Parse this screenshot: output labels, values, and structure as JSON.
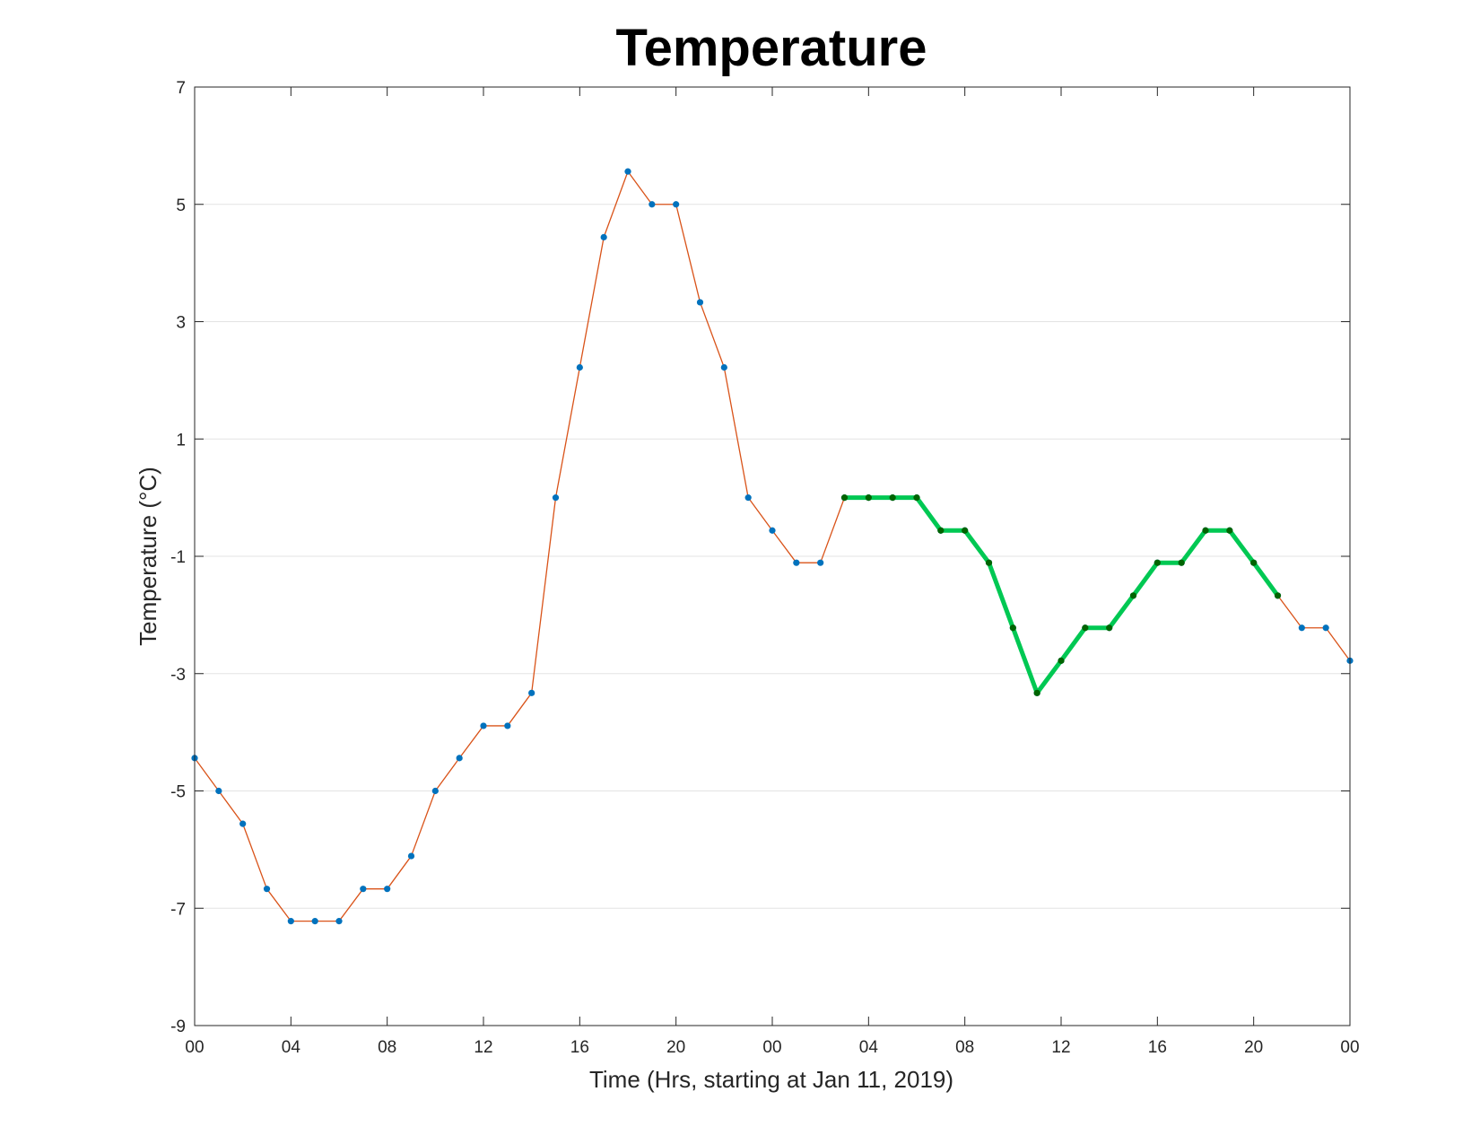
{
  "chart_data": {
    "type": "line",
    "title": "Temperature",
    "xlabel": "Time (Hrs, starting at Jan 11, 2019)",
    "ylabel": "Temperature (°C)",
    "xlim": [
      0,
      48
    ],
    "ylim": [
      -9,
      7
    ],
    "xticks": [
      0,
      4,
      8,
      12,
      16,
      20,
      24,
      28,
      32,
      36,
      40,
      44,
      48
    ],
    "xtick_labels": [
      "00",
      "04",
      "08",
      "12",
      "16",
      "20",
      "00",
      "04",
      "08",
      "12",
      "16",
      "20",
      "00"
    ],
    "yticks": [
      7,
      5,
      3,
      1,
      -1,
      -3,
      -5,
      -7,
      -9
    ],
    "ytick_labels": [
      "7",
      "5",
      "3",
      "1",
      "-1",
      "-3",
      "-5",
      "-7",
      "-9"
    ],
    "grid": "horizontal",
    "x": [
      0,
      1,
      2,
      3,
      4,
      5,
      6,
      7,
      8,
      9,
      10,
      11,
      12,
      13,
      14,
      15,
      16,
      17,
      18,
      19,
      20,
      21,
      22,
      23,
      24,
      25,
      26,
      27,
      28,
      29,
      30,
      31,
      32,
      33,
      34,
      35,
      36,
      37,
      38,
      39,
      40,
      41,
      42,
      43,
      44,
      45,
      46,
      47,
      48
    ],
    "series": [
      {
        "color": "#d95319",
        "marker_color": "#0072bd",
        "values": [
          -4.44,
          -5.0,
          -5.56,
          -6.67,
          -7.22,
          -7.22,
          -7.22,
          -6.67,
          -6.67,
          -6.11,
          -5.0,
          -4.44,
          -3.89,
          -3.89,
          -3.33,
          0.0,
          2.22,
          4.44,
          5.56,
          5.0,
          5.0,
          3.33,
          2.22,
          0.0,
          -0.56,
          -1.11,
          -1.11,
          0.0,
          0.0,
          0.0,
          0.0,
          -0.56,
          -0.56,
          -1.11,
          -2.22,
          -3.33,
          -2.78,
          -2.22,
          -2.22,
          -1.67,
          -1.11,
          -1.11,
          -0.56,
          -0.56,
          -1.11,
          -1.67,
          -2.22,
          -2.22,
          -2.78
        ]
      },
      {
        "color": "#00c853",
        "marker_color": "#006400",
        "x": [
          27,
          28,
          29,
          30,
          31,
          32,
          33,
          34,
          35,
          36,
          37,
          38,
          39,
          40,
          41,
          42,
          43,
          44,
          45
        ],
        "values": [
          0.0,
          0.0,
          0.0,
          0.0,
          -0.56,
          -0.56,
          -1.11,
          -2.22,
          -3.33,
          -2.78,
          -2.22,
          -2.22,
          -1.67,
          -1.11,
          -1.11,
          -0.56,
          -0.56,
          -1.11,
          -1.67
        ]
      }
    ]
  }
}
